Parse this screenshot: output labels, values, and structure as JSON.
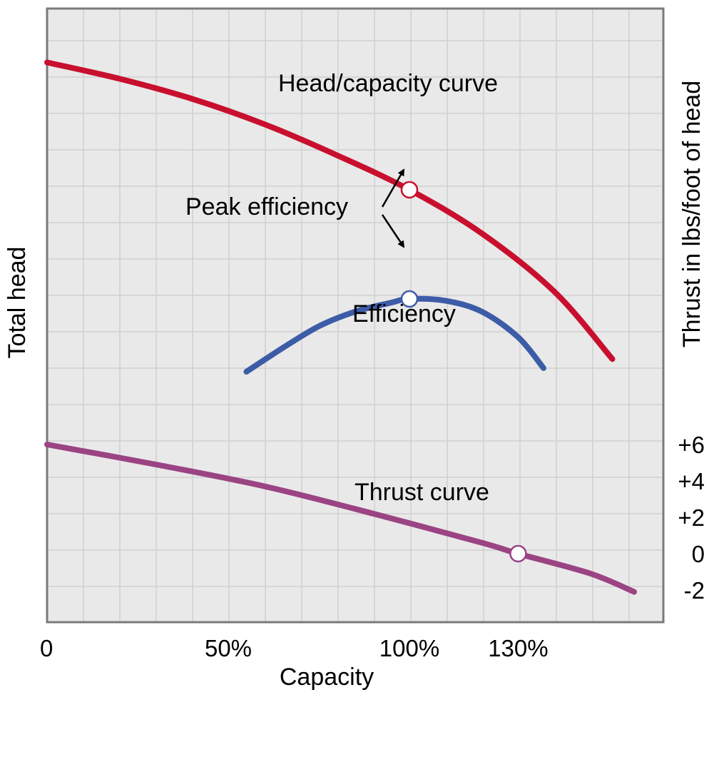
{
  "chart_data": {
    "type": "line",
    "xlabel": "Capacity",
    "ylabel": "Total head",
    "y2label": "Thrust in lbs/foot of head",
    "x_ticks": [
      {
        "value": 0,
        "label": "0"
      },
      {
        "value": 50,
        "label": "50%"
      },
      {
        "value": 100,
        "label": "100%"
      },
      {
        "value": 130,
        "label": "130%"
      }
    ],
    "xlim": [
      0,
      170
    ],
    "y2_ticks": [
      {
        "value": 6,
        "label": "+6"
      },
      {
        "value": 4,
        "label": "+4"
      },
      {
        "value": 2,
        "label": "+2"
      },
      {
        "value": 0,
        "label": "0"
      },
      {
        "value": -2,
        "label": "-2"
      }
    ],
    "y2lim": [
      -4,
      29
    ],
    "grid": true,
    "series": [
      {
        "name": "Head/capacity curve",
        "color": "#c8102e",
        "axis": "y2",
        "x": [
          0,
          20,
          40,
          60,
          80,
          100,
          120,
          140,
          156
        ],
        "y": [
          27,
          26.1,
          25,
          23.6,
          21.9,
          20,
          17.6,
          14.4,
          10.7
        ]
      },
      {
        "name": "Efficiency",
        "color": "#3d5ca8",
        "axis": "y2",
        "x": [
          55,
          65,
          75,
          85,
          95,
          100,
          110,
          120,
          130,
          137
        ],
        "y": [
          10,
          11.3,
          12.5,
          13.3,
          13.8,
          14,
          13.9,
          13.3,
          11.9,
          10.2
        ]
      },
      {
        "name": "Thrust curve",
        "color": "#9b4483",
        "axis": "y2",
        "x": [
          0,
          30,
          60,
          90,
          120,
          130,
          150,
          162
        ],
        "y": [
          6,
          4.9,
          3.7,
          2.2,
          0.6,
          0,
          -1.1,
          -2.1
        ]
      }
    ],
    "markers": [
      {
        "x": 100,
        "y": 20,
        "series": "Head/capacity curve"
      },
      {
        "x": 100,
        "y": 14,
        "series": "Efficiency"
      },
      {
        "x": 130,
        "y": 0,
        "series": "Thrust curve"
      }
    ],
    "annotations": [
      {
        "text": "Peak efficiency"
      }
    ]
  }
}
